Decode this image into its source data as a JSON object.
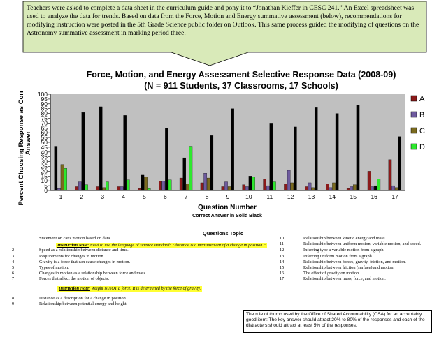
{
  "callout": {
    "text": "Teachers were asked to complete a data sheet in the curriculum guide and pony it to “Jonathan Kieffer in CESC 241.” An Excel spreadsheet was used to analyze the data for trends. Based on data from the Force, Motion and Energy summative assessment (below), recommendations for modifying instruction were posted in the 5th Grade Science public folder on Outlook. This same process guided the modifying of questions on the Astronomy summative assessment in marking period three.",
    "fill_color": "#d9eab9"
  },
  "chart_data": {
    "type": "bar",
    "title": "Force, Motion, and Energy Assessment Selective Response Data (2008-09)",
    "subtitle": "(N = 911  Students, 37 Classrooms, 17 Schools)",
    "xlabel": "Question Number",
    "xlabel_note": "Correct Answer in Solid Black",
    "ylabel": "Percent Choosing Response as Correct Answer",
    "ylabel_lines": [
      "Percent Choosing Response as Correct",
      "Answer"
    ],
    "ylim": [
      0,
      100
    ],
    "yticks": [
      0,
      5,
      10,
      15,
      20,
      25,
      30,
      35,
      40,
      45,
      50,
      55,
      60,
      65,
      70,
      75,
      80,
      85,
      90,
      95,
      100
    ],
    "grid": false,
    "plot_background": "#c0c0c0",
    "legend_position": "right",
    "categories": [
      "1",
      "2",
      "3",
      "4",
      "5",
      "6",
      "7",
      "8",
      "9",
      "10",
      "11",
      "12",
      "13",
      "14",
      "15",
      "16",
      "17"
    ],
    "series": [
      {
        "name": "A",
        "color": "#8b1a1a",
        "solid_color": "#000000",
        "values": [
          46,
          4,
          4,
          4,
          2,
          10,
          13,
          8,
          4,
          6,
          12,
          7,
          4,
          7,
          2,
          20,
          32
        ]
      },
      {
        "name": "B",
        "color": "#6e5a9e",
        "solid_color": "#000000",
        "values": [
          2,
          9,
          87,
          4,
          16,
          10,
          34,
          18,
          9,
          4,
          5,
          21,
          8,
          3,
          4,
          4,
          5
        ]
      },
      {
        "name": "C",
        "color": "#7a6a1e",
        "solid_color": "#000000",
        "values": [
          27,
          81,
          3,
          78,
          14,
          65,
          7,
          13,
          4,
          15,
          70,
          8,
          3,
          8,
          6,
          5,
          3
        ]
      },
      {
        "name": "D",
        "color": "#2ee82e",
        "solid_color": "#000000",
        "values": [
          23,
          6,
          9,
          11,
          2,
          11,
          46,
          57,
          85,
          14,
          9,
          66,
          86,
          80,
          89,
          12,
          56
        ]
      }
    ],
    "correct_answers": [
      "A",
      "C",
      "B",
      "C",
      "B",
      "C",
      "B",
      "D",
      "D",
      "C",
      "C",
      "D",
      "D",
      "D",
      "D",
      "C",
      "D"
    ]
  },
  "questions_topic": {
    "title": "Questions Topic",
    "left": [
      {
        "num": "1",
        "text": "Statement on car's motion based on data."
      },
      {
        "num": "2",
        "text": "Speed as a relationship between distance and time."
      },
      {
        "num": "3",
        "text": "Requirements for changes in motion."
      },
      {
        "num": "4",
        "text": "Gravity is a force that can cause changes in motion."
      },
      {
        "num": "5",
        "text": "Types of motion."
      },
      {
        "num": "6",
        "text": "Changes in motion as a relationship between force and mass."
      },
      {
        "num": "7",
        "text": "Forces that affect the motion of objects."
      },
      {
        "num": "8",
        "text": "Distance as a description for a change in position."
      },
      {
        "num": "9",
        "text": "Relationship between potential energy and height."
      }
    ],
    "right": [
      {
        "num": "10",
        "text": "Relationship between kinetic energy and mass."
      },
      {
        "num": "11",
        "text": "Relationship between uniform motion, variable motion, and speed."
      },
      {
        "num": "12",
        "text": "Inferring type a variable motion from a graph."
      },
      {
        "num": "13",
        "text": "Inferring uniform motion from a graph."
      },
      {
        "num": "14",
        "text": "Relationship between forces, gravity, friction, and motion."
      },
      {
        "num": "15",
        "text": "Relationship between friction (surface) and motion."
      },
      {
        "num": "16",
        "text": "The effect of gravity on motion."
      },
      {
        "num": "17",
        "text": "Relationship between mass, force, and motion."
      }
    ],
    "note1": {
      "label": "Instruction Note:",
      "text": "Need to use the language of science standard: “distance is a measurement of a change in position.”"
    },
    "note2": {
      "label": "Instruction Note:",
      "text": "Weight is NOT a force. It is determined by the force of gravity."
    },
    "osa_box": "The rule of thumb used by the Office of Shared Accountability (OSA) for an acceptably good item: The key answer should attract 20% to 80% of the responses and each of the distracters should attract at least 5% of the responses."
  }
}
